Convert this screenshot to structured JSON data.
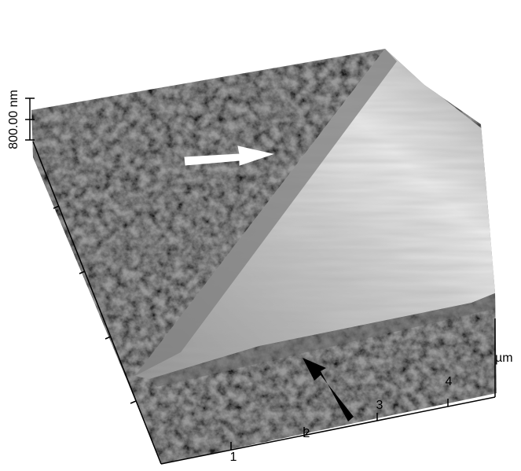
{
  "z_scale": {
    "label": "800.00 nm"
  },
  "x_axis": {
    "ticks": [
      1,
      2,
      3,
      4
    ],
    "unit": "µm"
  }
}
